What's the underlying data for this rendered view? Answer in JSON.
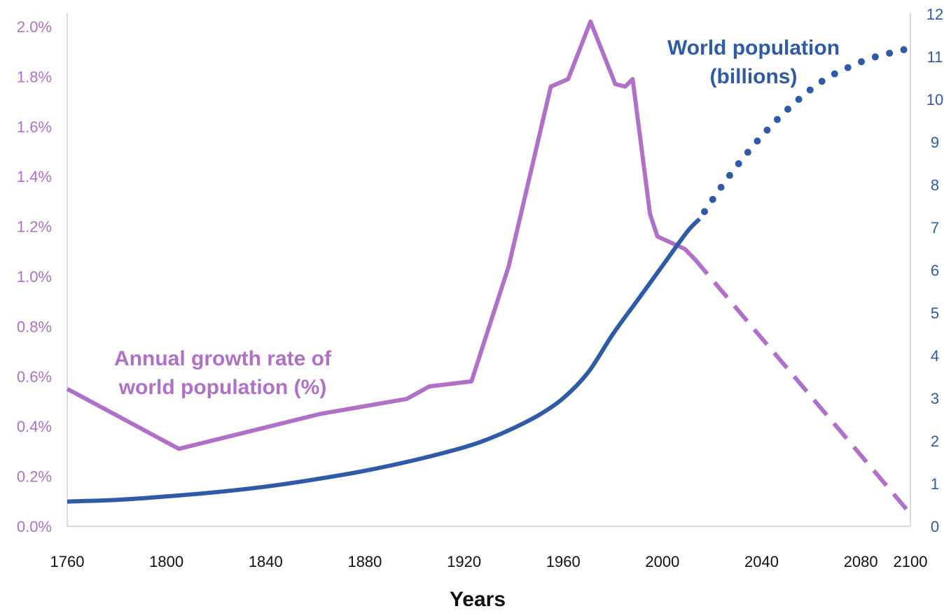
{
  "chart_data": {
    "type": "line",
    "xlabel": "Years",
    "x_ticks": [
      "1760",
      "1800",
      "1840",
      "1880",
      "1920",
      "1960",
      "2000",
      "2040",
      "2080",
      "2100"
    ],
    "xlim": [
      1760,
      2100
    ],
    "y_left": {
      "ticks": [
        "0.0%",
        "0.2%",
        "0.4%",
        "0.6%",
        "0.8%",
        "1.0%",
        "1.2%",
        "1.4%",
        "1.6%",
        "1.8%",
        "2.0%"
      ],
      "range": [
        0,
        2.0
      ],
      "color": "#b070c8"
    },
    "y_right": {
      "ticks": [
        "0",
        "1",
        "2",
        "3",
        "4",
        "5",
        "6",
        "7",
        "8",
        "9",
        "10",
        "11",
        "12"
      ],
      "range": [
        0,
        12
      ],
      "color": "#2f5aa6"
    },
    "grid": false,
    "annotations": {
      "growth_line1": "Annual growth rate of",
      "growth_line2": "world population (%)",
      "pop_line1": "World population",
      "pop_line2": "(billions)"
    },
    "series": [
      {
        "axis": "left",
        "color": "#b070c8",
        "style": "solid",
        "x": [
          1760,
          1805,
          1862,
          1897,
          1906,
          1923,
          1938,
          1955,
          1962,
          1971,
          1981,
          1985,
          1988,
          1995,
          1998,
          2009,
          2013
        ],
        "values": [
          0.55,
          0.31,
          0.45,
          0.51,
          0.56,
          0.58,
          1.04,
          1.76,
          1.79,
          2.02,
          1.77,
          1.76,
          1.79,
          1.25,
          1.16,
          1.11,
          1.07
        ]
      },
      {
        "axis": "left",
        "color": "#b070c8",
        "style": "dashed",
        "x": [
          2013,
          2100
        ],
        "values": [
          1.07,
          0.05
        ]
      },
      {
        "axis": "right",
        "color": "#2f5aa6",
        "style": "solid",
        "x": [
          1760,
          1780,
          1800,
          1820,
          1840,
          1860,
          1880,
          1900,
          1920,
          1930,
          1940,
          1950,
          1960,
          1970,
          1980,
          1990,
          2000,
          2010,
          2015
        ],
        "values": [
          0.58,
          0.62,
          0.7,
          0.8,
          0.93,
          1.1,
          1.3,
          1.55,
          1.85,
          2.05,
          2.3,
          2.6,
          3.0,
          3.6,
          4.5,
          5.3,
          6.1,
          6.9,
          7.2
        ]
      },
      {
        "axis": "right",
        "color": "#2f5aa6",
        "style": "dotted",
        "x": [
          2015,
          2025,
          2035,
          2045,
          2055,
          2065,
          2075,
          2085,
          2100
        ],
        "values": [
          7.2,
          8.05,
          8.8,
          9.45,
          10.0,
          10.45,
          10.75,
          10.98,
          11.2
        ]
      }
    ]
  }
}
